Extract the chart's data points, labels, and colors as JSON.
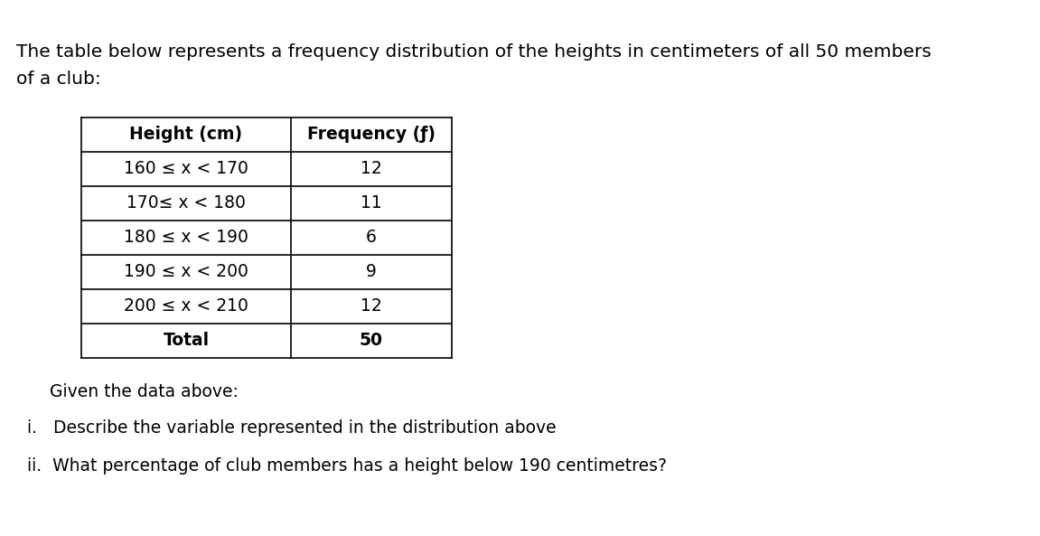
{
  "intro_text_line1": "The table below represents a frequency distribution of the heights in centimeters of all 50 members",
  "intro_text_line2": "of a club:",
  "table_headers": [
    "Height (cm)",
    "Frequency (ƒ)"
  ],
  "table_rows": [
    [
      "160 ≤ x < 170",
      "12"
    ],
    [
      "170≤ x < 180",
      "11"
    ],
    [
      "180 ≤ x < 190",
      "6"
    ],
    [
      "190 ≤ x < 200",
      "9"
    ],
    [
      "200 ≤ x < 210",
      "12"
    ],
    [
      "Total",
      "50"
    ]
  ],
  "footer_text": "Given the data above:",
  "questions": [
    "i.   Describe the variable represented in the distribution above",
    "ii.  What percentage of club members has a height below 190 centimetres?"
  ],
  "bg_color": "#ffffff",
  "text_color": "#000000",
  "font_size_intro": 14.5,
  "font_size_table": 13.5,
  "font_size_footer": 13.5,
  "font_size_questions": 13.5
}
